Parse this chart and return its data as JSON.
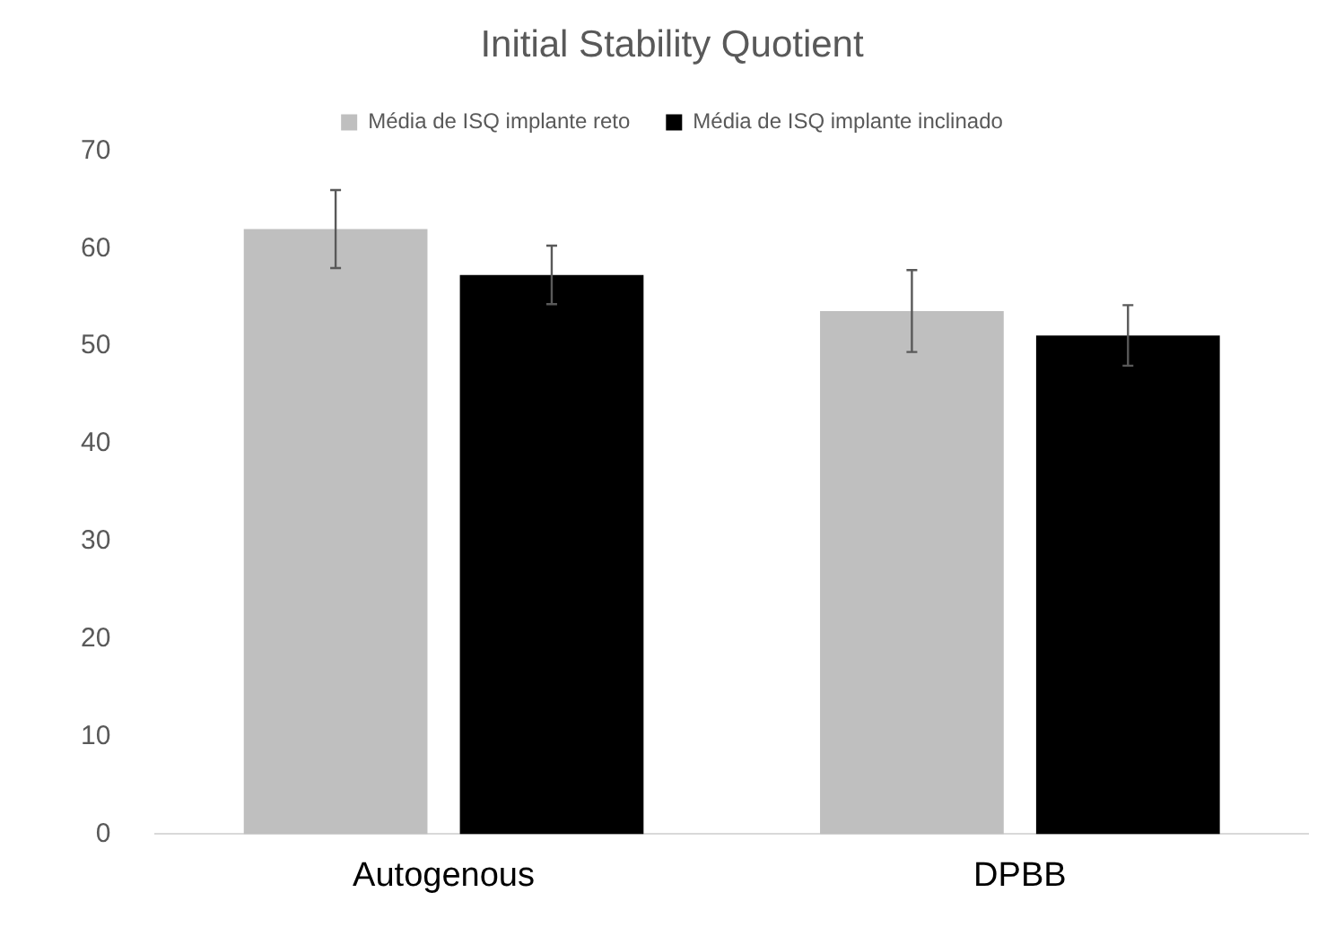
{
  "chart_data": {
    "type": "bar",
    "title": "Initial Stability Quotient",
    "categories": [
      "Autogenous",
      "DPBB"
    ],
    "series": [
      {
        "name": "Média de ISQ implante reto",
        "color": "#bfbfbf",
        "values": [
          62,
          53.6
        ],
        "errors": [
          4,
          4.2
        ]
      },
      {
        "name": "Média de ISQ implante inclinado",
        "color": "#000000",
        "values": [
          57.3,
          51.1
        ],
        "errors": [
          3,
          3.1
        ]
      }
    ],
    "ylim": [
      0,
      70
    ],
    "yticks": [
      0,
      10,
      20,
      30,
      40,
      50,
      60,
      70
    ],
    "grid": false,
    "legend": "top"
  }
}
